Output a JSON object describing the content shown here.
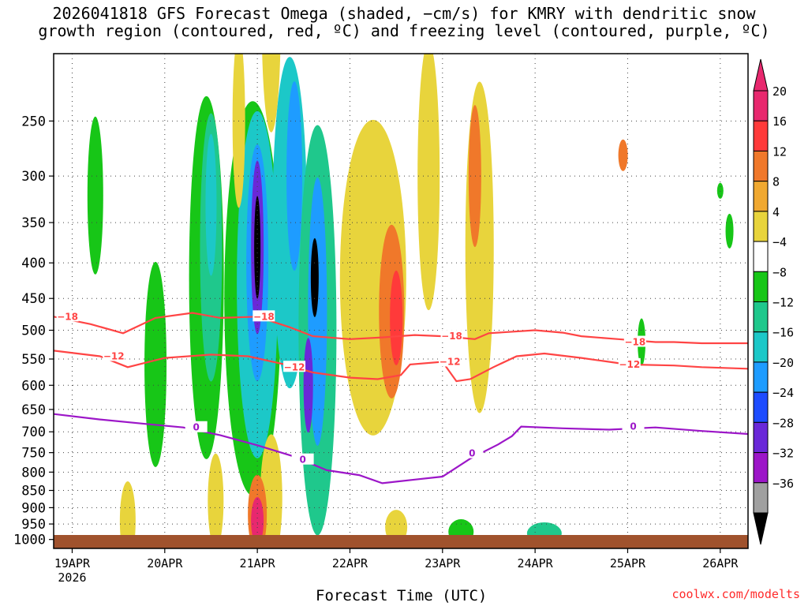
{
  "title_line1": "2026041818 GFS Forecast Omega (shaded, −cm/s) for KMRY with dendritic snow",
  "title_line2": "growth region (contoured, red, ºC) and freezing level (contoured, purple, ºC)",
  "xlabel": "Forecast Time (UTC)",
  "credit": "coolwx.com/modelts",
  "chart_data": {
    "type": "heatmap",
    "y_axis": {
      "label": "",
      "scale": "log-pressure",
      "range_hpa": [
        1030,
        200
      ],
      "ticks": [
        250,
        300,
        350,
        400,
        450,
        500,
        550,
        600,
        650,
        700,
        750,
        800,
        850,
        900,
        950,
        1000
      ]
    },
    "x_axis": {
      "range_days": [
        18.8,
        26.3
      ],
      "ticks": [
        {
          "day": 19,
          "label": "19APR",
          "sublabel": "2026"
        },
        {
          "day": 20,
          "label": "20APR",
          "sublabel": ""
        },
        {
          "day": 21,
          "label": "21APR",
          "sublabel": ""
        },
        {
          "day": 22,
          "label": "22APR",
          "sublabel": ""
        },
        {
          "day": 23,
          "label": "23APR",
          "sublabel": ""
        },
        {
          "day": 24,
          "label": "24APR",
          "sublabel": ""
        },
        {
          "day": 25,
          "label": "25APR",
          "sublabel": ""
        },
        {
          "day": 26,
          "label": "26APR",
          "sublabel": ""
        }
      ]
    },
    "grid": true,
    "colorbar": {
      "levels": [
        "20",
        "16",
        "12",
        "8",
        "4",
        "−4",
        "−8",
        "−12",
        "−16",
        "−20",
        "−24",
        "−28",
        "−32",
        "−36"
      ],
      "colors": [
        "#e8286e",
        "#ff3a3a",
        "#f0782a",
        "#f0a830",
        "#e8d43c",
        "#ffffff",
        "#17c617",
        "#1fc88c",
        "#1cc8c8",
        "#1e9cff",
        "#1e4cff",
        "#6a28d8",
        "#9c16c8",
        "#a0a0a0"
      ],
      "top_arrow_color": "#e8286e",
      "bottom_arrow_color": "#000000"
    },
    "contours": [
      {
        "name": "-18",
        "color": "#ff4444",
        "label": "−18",
        "points": [
          [
            18.8,
            478
          ],
          [
            19.2,
            490
          ],
          [
            19.55,
            505
          ],
          [
            19.9,
            480
          ],
          [
            20.3,
            472
          ],
          [
            20.6,
            480
          ],
          [
            21.0,
            478
          ],
          [
            21.35,
            495
          ],
          [
            21.6,
            510
          ],
          [
            22.0,
            515
          ],
          [
            22.35,
            512
          ],
          [
            22.7,
            508
          ],
          [
            23.0,
            510
          ],
          [
            23.35,
            515
          ],
          [
            23.5,
            505
          ],
          [
            24.0,
            500
          ],
          [
            24.3,
            504
          ],
          [
            24.5,
            510
          ],
          [
            24.9,
            515
          ],
          [
            25.3,
            520
          ],
          [
            25.5,
            520
          ],
          [
            25.8,
            522
          ],
          [
            26.3,
            522
          ]
        ],
        "labels_at": [
          [
            18.95,
            478
          ],
          [
            21.07,
            478
          ],
          [
            23.1,
            510
          ],
          [
            25.08,
            520
          ]
        ]
      },
      {
        "name": "-12",
        "color": "#ff4444",
        "label": "−12",
        "points": [
          [
            18.8,
            535
          ],
          [
            19.3,
            545
          ],
          [
            19.6,
            565
          ],
          [
            20.0,
            548
          ],
          [
            20.5,
            542
          ],
          [
            20.9,
            545
          ],
          [
            21.3,
            560
          ],
          [
            21.6,
            575
          ],
          [
            22.0,
            585
          ],
          [
            22.3,
            588
          ],
          [
            22.55,
            580
          ],
          [
            22.65,
            560
          ],
          [
            23.0,
            555
          ],
          [
            23.15,
            592
          ],
          [
            23.3,
            588
          ],
          [
            23.55,
            565
          ],
          [
            23.8,
            545
          ],
          [
            24.1,
            540
          ],
          [
            24.5,
            548
          ],
          [
            25.0,
            560
          ],
          [
            25.5,
            562
          ],
          [
            25.8,
            565
          ],
          [
            26.3,
            568
          ]
        ],
        "labels_at": [
          [
            19.45,
            545
          ],
          [
            21.4,
            565
          ],
          [
            23.08,
            555
          ],
          [
            25.02,
            560
          ]
        ]
      },
      {
        "name": "0",
        "color": "#9c16c8",
        "label": "0",
        "points": [
          [
            18.8,
            660
          ],
          [
            19.3,
            672
          ],
          [
            19.8,
            682
          ],
          [
            20.2,
            690
          ],
          [
            20.6,
            708
          ],
          [
            21.0,
            732
          ],
          [
            21.4,
            760
          ],
          [
            21.75,
            795
          ],
          [
            22.1,
            808
          ],
          [
            22.35,
            830
          ],
          [
            22.7,
            820
          ],
          [
            23.0,
            812
          ],
          [
            23.3,
            765
          ],
          [
            23.6,
            730
          ],
          [
            23.75,
            710
          ],
          [
            23.85,
            688
          ],
          [
            24.3,
            692
          ],
          [
            24.8,
            695
          ],
          [
            25.3,
            690
          ],
          [
            25.8,
            698
          ],
          [
            26.3,
            705
          ]
        ],
        "labels_at": [
          [
            20.34,
            690
          ],
          [
            21.49,
            768
          ],
          [
            23.32,
            752
          ],
          [
            25.06,
            688
          ]
        ]
      }
    ]
  }
}
